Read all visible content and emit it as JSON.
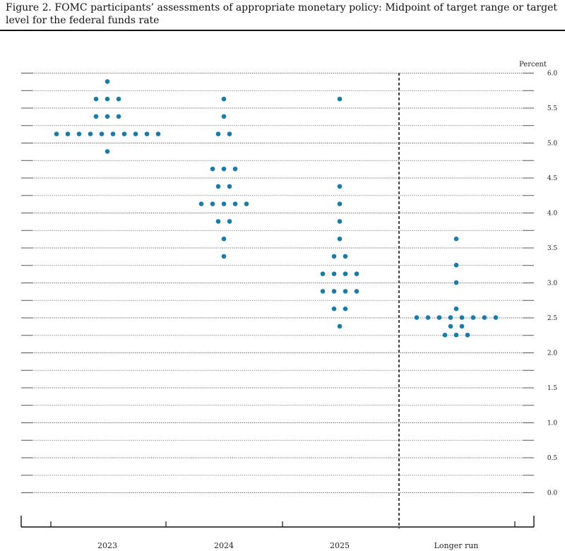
{
  "figure": {
    "title": "Figure 2.  FOMC participants’ assessments of appropriate monetary policy:  Midpoint of target range or target level for the federal funds rate"
  },
  "chart_data": {
    "type": "scatter",
    "title": "Figure 2.  FOMC participants’ assessments of appropriate monetary policy:  Midpoint of target range or target level for the federal funds rate",
    "ylabel": "Percent",
    "ylim": [
      0,
      6
    ],
    "y_ticks": [
      "0.0",
      "0.5",
      "1.0",
      "1.5",
      "2.0",
      "2.5",
      "3.0",
      "3.5",
      "4.0",
      "4.5",
      "5.0",
      "5.5",
      "6.0"
    ],
    "categories": [
      "2023",
      "2024",
      "2025",
      "Longer run"
    ],
    "grid": true,
    "colors": {
      "dot": "#1a7aa8",
      "grid": "#555555"
    },
    "distribution": [
      {
        "category": "2023",
        "points": [
          {
            "y": 4.875,
            "count": 1
          },
          {
            "y": 5.125,
            "count": 10
          },
          {
            "y": 5.375,
            "count": 3
          },
          {
            "y": 5.625,
            "count": 3
          },
          {
            "y": 5.875,
            "count": 1
          }
        ]
      },
      {
        "category": "2024",
        "points": [
          {
            "y": 3.375,
            "count": 1
          },
          {
            "y": 3.625,
            "count": 1
          },
          {
            "y": 3.875,
            "count": 2
          },
          {
            "y": 4.125,
            "count": 5
          },
          {
            "y": 4.375,
            "count": 2
          },
          {
            "y": 4.625,
            "count": 3
          },
          {
            "y": 5.125,
            "count": 2
          },
          {
            "y": 5.375,
            "count": 1
          },
          {
            "y": 5.625,
            "count": 1
          }
        ]
      },
      {
        "category": "2025",
        "points": [
          {
            "y": 2.375,
            "count": 1
          },
          {
            "y": 2.625,
            "count": 2
          },
          {
            "y": 2.875,
            "count": 4
          },
          {
            "y": 3.125,
            "count": 4
          },
          {
            "y": 3.375,
            "count": 2
          },
          {
            "y": 3.625,
            "count": 1
          },
          {
            "y": 3.875,
            "count": 1
          },
          {
            "y": 4.125,
            "count": 1
          },
          {
            "y": 4.375,
            "count": 1
          },
          {
            "y": 5.625,
            "count": 1
          }
        ]
      },
      {
        "category": "Longer run",
        "points": [
          {
            "y": 2.25,
            "count": 3
          },
          {
            "y": 2.375,
            "count": 2
          },
          {
            "y": 2.5,
            "count": 8
          },
          {
            "y": 2.625,
            "count": 1
          },
          {
            "y": 3.0,
            "count": 1
          },
          {
            "y": 3.25,
            "count": 1
          },
          {
            "y": 3.625,
            "count": 1
          }
        ]
      }
    ]
  }
}
